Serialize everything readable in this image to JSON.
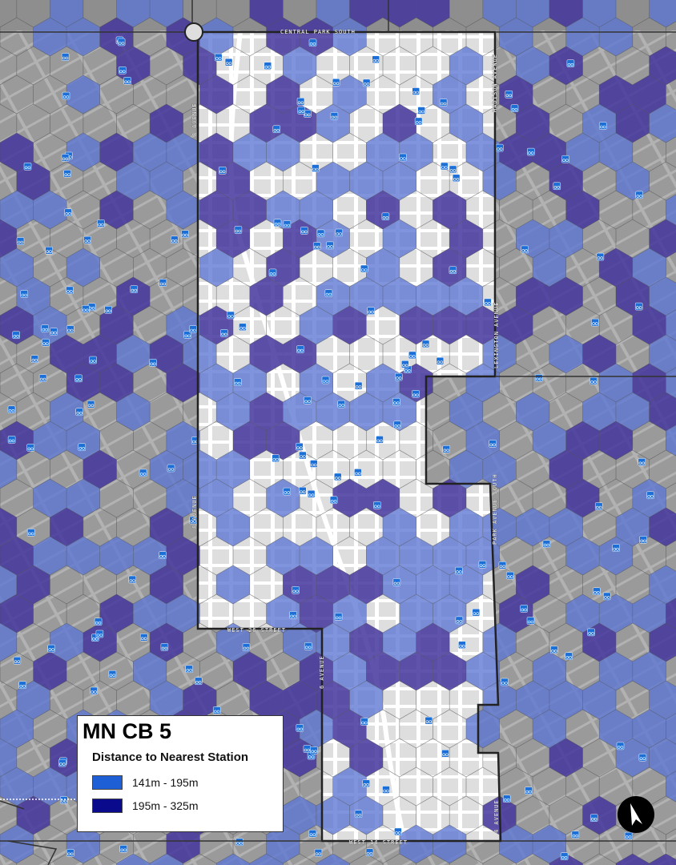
{
  "legend": {
    "title": "MN CB 5",
    "subtitle": "Distance to Nearest Station",
    "classes": [
      {
        "label": "141m - 195m",
        "color": "#1f5fd6"
      },
      {
        "label": "195m - 325m",
        "color": "#0a0a8c"
      }
    ]
  },
  "streets": {
    "north": "CENTRAL PARK SOUTH",
    "west_upper": "8 AVENUE",
    "west_lower": "8 AVENUE",
    "south_mid": "WEST 26 STREET",
    "south": "WEST 14 STREET",
    "lower_west": "6 AVENUE",
    "east_upper": "MADISON AVENUE",
    "east_mid": "LEXINGTON AVENUE",
    "east_lower": "PARK AVENUE SOUTH",
    "east_bottom": "4 AVENUE"
  },
  "colors": {
    "hex_light": "#5b76d4",
    "hex_dark": "#43359c",
    "district_fill": "#dedede",
    "outside_fill": "#9a9a9a",
    "station_icon": "#1b6fd6",
    "boundary": "#222222"
  },
  "icons": {
    "station": "bike-station-icon",
    "north_arrow": "north-arrow-icon"
  }
}
